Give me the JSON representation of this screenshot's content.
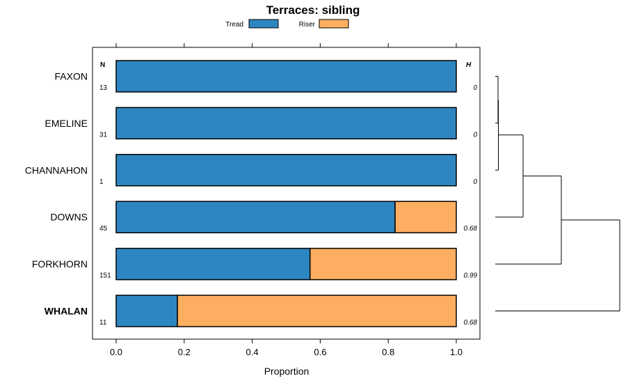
{
  "chart_data": {
    "type": "bar",
    "orientation": "horizontal",
    "stacked": true,
    "title": "Terraces: sibling",
    "xlabel": "Proportion",
    "ylabel": "",
    "xlim": [
      0,
      1
    ],
    "x_ticks": [
      "0.0",
      "0.2",
      "0.4",
      "0.6",
      "0.8",
      "1.0"
    ],
    "x_tick_values": [
      0,
      0.2,
      0.4,
      0.6,
      0.8,
      1.0
    ],
    "categories": [
      "FAXON",
      "EMELINE",
      "CHANNAHON",
      "DOWNS",
      "FORKHORN",
      "WHALAN"
    ],
    "bold_categories": [
      "WHALAN"
    ],
    "series": [
      {
        "name": "Tread",
        "color": "#2e86c1",
        "values": [
          1.0,
          1.0,
          1.0,
          0.82,
          0.57,
          0.18
        ]
      },
      {
        "name": "Riser",
        "color": "#fdae61",
        "values": [
          0.0,
          0.0,
          0.0,
          0.18,
          0.43,
          0.82
        ]
      }
    ],
    "n_header": "N",
    "h_header": "H",
    "n_values": [
      "13",
      "31",
      "1",
      "45",
      "151",
      "11"
    ],
    "h_values": [
      "0",
      "0",
      "0",
      "0.68",
      "0.99",
      "0.68"
    ],
    "legend_position": "top-center",
    "dendrogram": {
      "merges": [
        [
          "FAXON",
          "EMELINE"
        ],
        [
          "FAXON+EMELINE",
          "CHANNAHON"
        ],
        [
          "FAXON+EMELINE+CHANNAHON",
          "DOWNS"
        ],
        [
          "FAXON+EMELINE+CHANNAHON+DOWNS",
          "FORKHORN"
        ],
        [
          "FAXON+EMELINE+CHANNAHON+DOWNS+FORKHORN",
          "WHALAN"
        ]
      ]
    }
  }
}
